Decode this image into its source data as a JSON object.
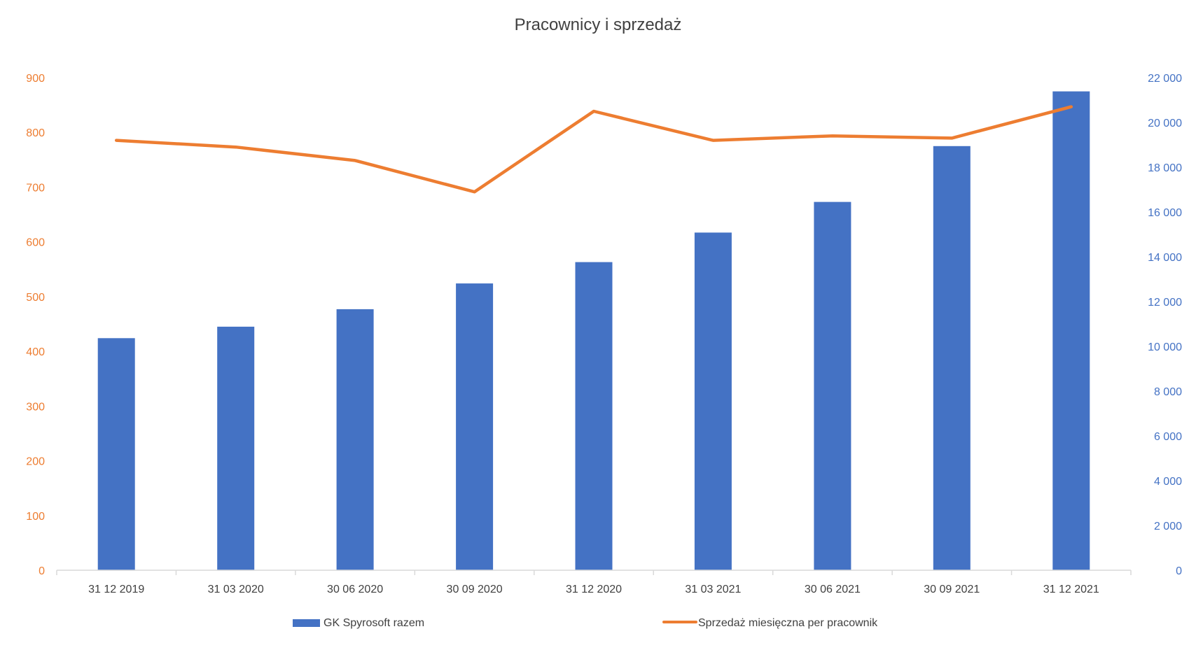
{
  "chart_data": {
    "type": "bar+line",
    "title": "Pracownicy  i sprzedaż",
    "categories": [
      "31 12 2019",
      "31 03 2020",
      "30 06 2020",
      "30 09 2020",
      "31 12 2020",
      "31 03 2021",
      "30 06 2021",
      "30 09 2021",
      "31 12 2021"
    ],
    "series": [
      {
        "name": "GK Spyrosoft razem",
        "type": "bar",
        "axis": "left",
        "color": "#4472C4",
        "values": [
          424,
          445,
          477,
          524,
          563,
          617,
          673,
          775,
          875
        ]
      },
      {
        "name": "Sprzedaż miesięczna per pracownik",
        "type": "line",
        "axis": "right",
        "color": "#ED7D31",
        "values": [
          19200,
          18900,
          18300,
          16900,
          20500,
          19200,
          19400,
          19300,
          20700
        ]
      }
    ],
    "y_left": {
      "ylim": [
        0,
        900
      ],
      "ticks": [
        0,
        100,
        200,
        300,
        400,
        500,
        600,
        700,
        800,
        900
      ],
      "tick_labels": [
        "0",
        "100",
        "200",
        "300",
        "400",
        "500",
        "600",
        "700",
        "800",
        "900"
      ],
      "color": "#ED7D31"
    },
    "y_right": {
      "ylim": [
        0,
        22000
      ],
      "ticks": [
        0,
        2000,
        4000,
        6000,
        8000,
        10000,
        12000,
        14000,
        16000,
        18000,
        20000,
        22000
      ],
      "tick_labels": [
        "0",
        "2 000",
        "4 000",
        "6 000",
        "8 000",
        "10 000",
        "12 000",
        "14 000",
        "16 000",
        "18 000",
        "20 000",
        "22 000"
      ],
      "color": "#4472C4"
    },
    "grid": false,
    "legend_position": "bottom"
  }
}
